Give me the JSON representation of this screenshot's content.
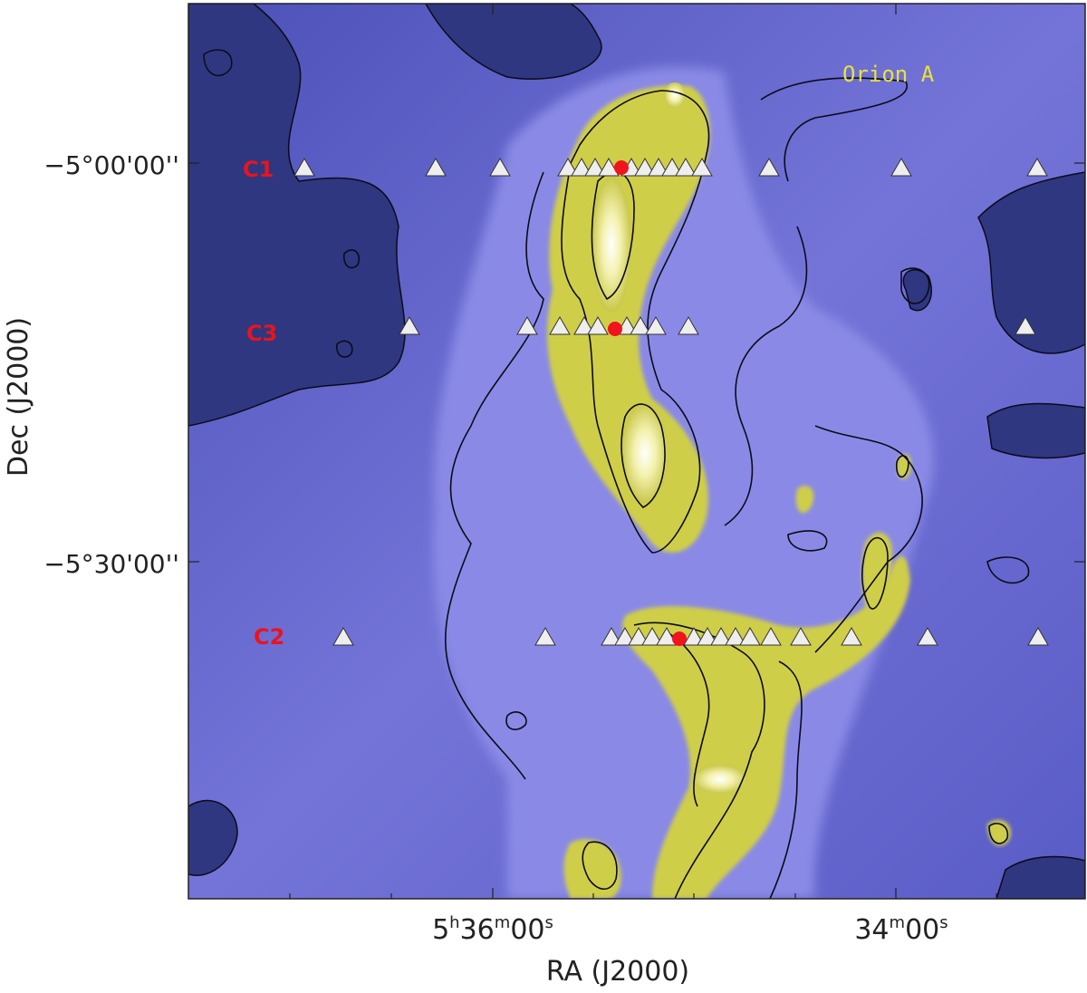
{
  "image": {
    "field_label": "Orion A",
    "x_axis_title": "RA (J2000)",
    "y_axis_title": "Dec (J2000)",
    "x_ticks": [
      {
        "id": "ra-tick-1",
        "parts": [
          "5",
          "h",
          "36",
          "m",
          "00",
          "s"
        ]
      },
      {
        "id": "ra-tick-2",
        "parts": [
          "",
          "",
          "34",
          "m",
          "00",
          "s"
        ]
      }
    ],
    "y_ticks": [
      {
        "id": "dec-tick-1",
        "text": "−5°00'00''"
      },
      {
        "id": "dec-tick-2",
        "text": "−5°30'00''"
      }
    ],
    "cuts": [
      {
        "label": "C1"
      },
      {
        "label": "C3"
      },
      {
        "label": "C2"
      }
    ],
    "colors": {
      "background_field": "#6f6fd4",
      "dark_region": "#2f3780",
      "filament_yellow": "#d7d650",
      "filament_core": "#fffbe8",
      "contour": "#0b0b1a",
      "marker_triangle": "#eeeeee",
      "source_dot": "#f0141e",
      "cut_label": "#e8141e",
      "field_label": "#e9e23a"
    },
    "icons": [
      "triangle-marker-icon",
      "red-dot-marker-icon"
    ]
  }
}
